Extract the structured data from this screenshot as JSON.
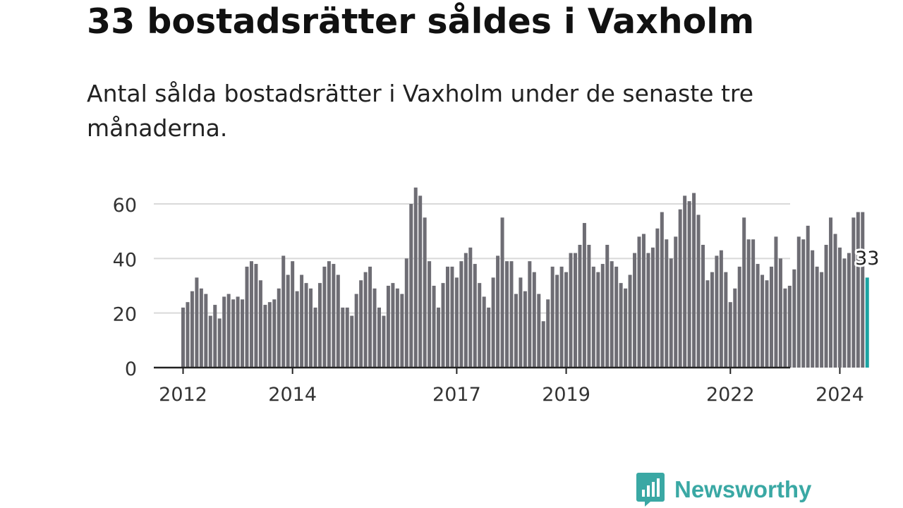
{
  "header": {
    "title": "33 bostadsrätter såldes i Vaxholm",
    "subtitle": "Antal sålda bostadsrätter i Vaxholm under de senaste tre månaderna."
  },
  "brand": {
    "name": "Newsworthy",
    "color": "#3aa8a4"
  },
  "chart_data": {
    "type": "bar",
    "title": "33 bostadsrätter såldes i Vaxholm",
    "subtitle": "Antal sålda bostadsrätter i Vaxholm under de senaste tre månaderna.",
    "xlabel": "",
    "ylabel": "",
    "ylim": [
      0,
      66
    ],
    "yticks": [
      0,
      20,
      40,
      60
    ],
    "grid": true,
    "x_tick_labels": [
      {
        "label": "2012",
        "index": 0
      },
      {
        "label": "2014",
        "index": 24
      },
      {
        "label": "2017",
        "index": 60
      },
      {
        "label": "2019",
        "index": 84
      },
      {
        "label": "2022",
        "index": 120
      },
      {
        "label": "2024",
        "index": 144
      }
    ],
    "first_period": "2012-01",
    "bar_color": "#6e6d74",
    "highlight_color": "#1ba3a2",
    "highlight_label": "33",
    "values": [
      22,
      24,
      28,
      33,
      29,
      27,
      19,
      23,
      18,
      26,
      27,
      25,
      26,
      25,
      37,
      39,
      38,
      32,
      23,
      24,
      25,
      29,
      41,
      34,
      39,
      28,
      34,
      31,
      29,
      22,
      31,
      37,
      39,
      38,
      34,
      22,
      22,
      19,
      27,
      32,
      35,
      37,
      29,
      22,
      19,
      30,
      31,
      29,
      27,
      40,
      60,
      66,
      63,
      55,
      39,
      30,
      22,
      31,
      37,
      37,
      33,
      39,
      42,
      44,
      38,
      31,
      26,
      22,
      33,
      41,
      55,
      39,
      39,
      27,
      33,
      28,
      39,
      35,
      27,
      17,
      25,
      37,
      34,
      37,
      35,
      42,
      42,
      45,
      53,
      45,
      37,
      35,
      38,
      45,
      39,
      37,
      31,
      29,
      34,
      42,
      48,
      49,
      42,
      44,
      51,
      57,
      47,
      40,
      48,
      58,
      63,
      61,
      64,
      56,
      45,
      32,
      35,
      41,
      43,
      35,
      24,
      29,
      37,
      55,
      47,
      47,
      38,
      34,
      32,
      37,
      48,
      40,
      29,
      30,
      36,
      48,
      47,
      52,
      43,
      37,
      35,
      45,
      55,
      49,
      44,
      40,
      42,
      55,
      57,
      57,
      33
    ]
  }
}
